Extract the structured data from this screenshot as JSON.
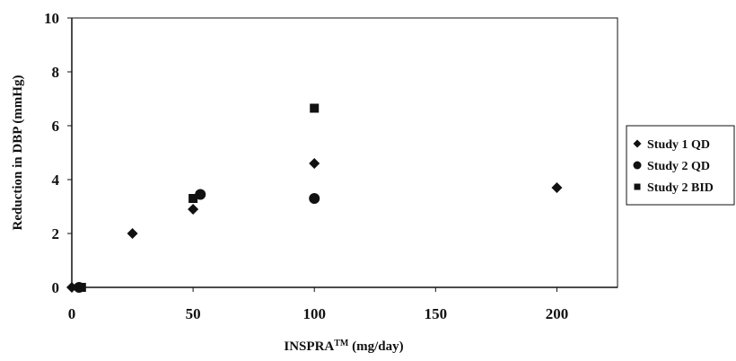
{
  "chart_data": {
    "type": "scatter",
    "xlabel": "INSPRA",
    "xlabel_sup": "TM",
    "xlabel_unit": "(mg/day)",
    "ylabel": "Reduction in DBP (mmHg)",
    "xlim": [
      0,
      225
    ],
    "ylim": [
      0,
      10
    ],
    "x_ticks": [
      0,
      50,
      100,
      150,
      200
    ],
    "y_ticks": [
      0,
      2,
      4,
      6,
      8,
      10
    ],
    "grid": false,
    "legend_position": "right",
    "series": [
      {
        "name": "Study 1 QD",
        "marker": "diamond",
        "points": [
          [
            0,
            0
          ],
          [
            25,
            2.0
          ],
          [
            50,
            2.9
          ],
          [
            100,
            4.6
          ],
          [
            200,
            3.7
          ]
        ]
      },
      {
        "name": "Study 2 QD",
        "marker": "circle",
        "points": [
          [
            3,
            0
          ],
          [
            53,
            3.45
          ],
          [
            100,
            3.3
          ]
        ]
      },
      {
        "name": "Study 2 BID",
        "marker": "square",
        "points": [
          [
            4,
            0
          ],
          [
            50,
            3.3
          ],
          [
            100,
            6.65
          ]
        ]
      }
    ],
    "colors": {
      "marker": "#111111",
      "axis": "#111111"
    }
  }
}
